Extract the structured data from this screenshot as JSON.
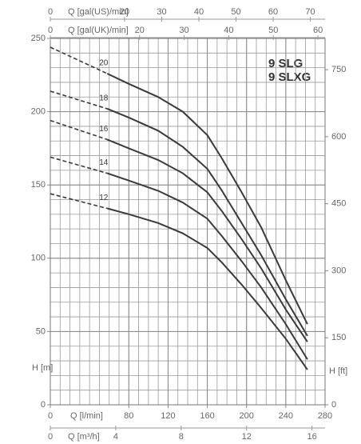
{
  "chart_data": {
    "type": "line",
    "title": [
      "9 SLG",
      "9 SLXG"
    ],
    "x_label": "Q [l/min]",
    "y_label": "H [m]",
    "y2_label": "H [ft]",
    "x": [
      0,
      58,
      80,
      110,
      135,
      160,
      175,
      195,
      215,
      240,
      262
    ],
    "xlim": [
      0,
      280
    ],
    "xticks": [
      0,
      80,
      120,
      160,
      200,
      240,
      280
    ],
    "ylim": [
      0,
      250
    ],
    "yticks": [
      0,
      50,
      100,
      150,
      200,
      250
    ],
    "y2lim": [
      0,
      820
    ],
    "y2ticks": [
      0,
      150,
      300,
      450,
      600,
      750
    ],
    "grid": true,
    "color": "#3a3a3a",
    "extra_x_axes": [
      {
        "position": "top",
        "label": "Q [gal(US)/min]",
        "xlim": [
          0,
          73.97
        ],
        "xticks": [
          0,
          20,
          30,
          40,
          50,
          60,
          70
        ]
      },
      {
        "position": "top",
        "label": "Q [gal(UK)/min]",
        "xlim": [
          0,
          61.59
        ],
        "xticks": [
          0,
          20,
          30,
          40,
          50,
          60
        ]
      },
      {
        "position": "bottom",
        "label": "Q [m³/h]",
        "xlim": [
          0,
          16.8
        ],
        "xticks": [
          0,
          4,
          8,
          12,
          16
        ]
      }
    ],
    "series": [
      {
        "name": "20",
        "values": [
          244,
          226,
          219,
          210,
          200,
          184,
          168,
          145,
          121,
          85,
          55
        ]
      },
      {
        "name": "18",
        "values": [
          214,
          202,
          196,
          187,
          176,
          161,
          146,
          124,
          102,
          72,
          47
        ]
      },
      {
        "name": "16",
        "values": [
          194,
          181,
          175,
          167,
          158,
          145,
          132,
          113,
          93,
          65,
          43
        ]
      },
      {
        "name": "14",
        "values": [
          169,
          158,
          153,
          146,
          138,
          127,
          115,
          98,
          80,
          55,
          31
        ]
      },
      {
        "name": "12",
        "values": [
          144,
          134,
          130,
          124,
          117,
          107,
          97,
          82,
          66,
          45,
          24
        ]
      }
    ]
  }
}
